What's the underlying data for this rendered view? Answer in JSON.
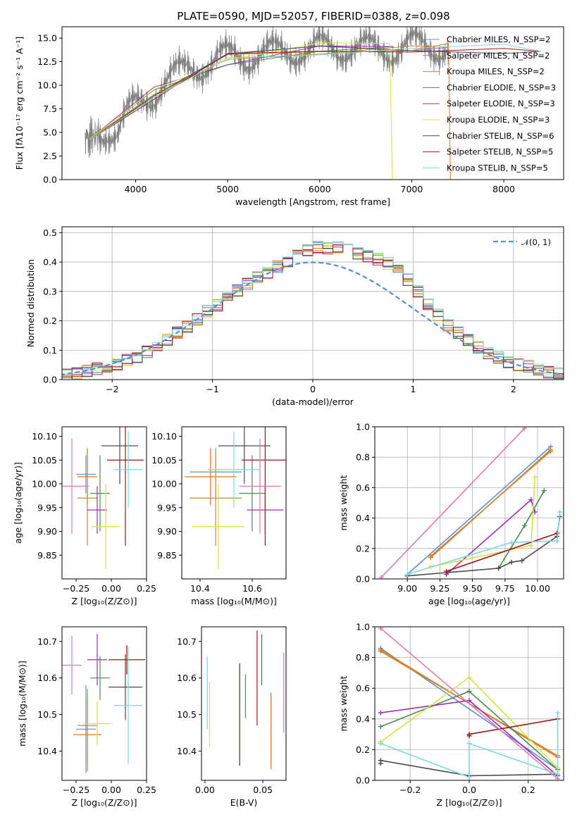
{
  "title": "PLATE=0590, MJD=52057, FIBERID=0388, z=0.098",
  "colors": [
    "#5f8fd3",
    "#e6751a",
    "#c48a3b",
    "#4f8a52",
    "#9a2fb5",
    "#d8e040",
    "#4a4a4a",
    "#a01515",
    "#7fd8dc",
    "#e07aa8"
  ],
  "chart_data": [
    {
      "type": "line",
      "xlabel": "wavelength [Angstrom, rest frame]",
      "ylabel": "Flux [fλ10⁻¹⁷ erg cm⁻² s⁻¹ A⁻¹]",
      "xlim": [
        3200,
        8650
      ],
      "ylim": [
        0,
        16.2
      ],
      "xticks": [
        "4000",
        "5000",
        "6000",
        "7000",
        "8000"
      ],
      "yticks": [
        "0.0",
        "2.5",
        "5.0",
        "7.5",
        "10.0",
        "12.5",
        "15.0"
      ],
      "observed_spectrum": {
        "color": "#808080",
        "x": [
          3450,
          3520,
          3600,
          3700,
          3800,
          3900,
          4000,
          4100,
          4200,
          4300,
          4400,
          4500,
          4600,
          4700,
          4800,
          4900,
          5000,
          5100,
          5200,
          5300,
          5400,
          5500,
          5600,
          5700,
          5800,
          5900,
          6000,
          6100,
          6200,
          6300,
          6400,
          6500,
          6600,
          6700,
          6800,
          6900,
          7000,
          7100,
          7200,
          7300,
          7400
        ],
        "y": [
          4.2,
          4.5,
          4.8,
          5.5,
          5.2,
          6.8,
          7.6,
          8.3,
          9.2,
          10.5,
          10.9,
          11.2,
          11.8,
          12.1,
          12.5,
          12.8,
          12.9,
          13.1,
          13.0,
          13.3,
          13.4,
          13.3,
          13.6,
          13.7,
          13.8,
          13.5,
          13.9,
          14.0,
          14.0,
          14.1,
          13.8,
          13.7,
          13.9,
          14.0,
          13.8,
          13.9,
          14.1,
          14.2,
          14.3,
          14.1,
          14.0
        ]
      },
      "series": [
        {
          "name": "Chabrier MILES, N_SSP=2",
          "x": [
            3500,
            4200,
            5000,
            6000,
            7000,
            7400
          ],
          "y": [
            4.3,
            9.3,
            12.8,
            13.9,
            14.2,
            14.0
          ]
        },
        {
          "name": "Salpeter MILES, N_SSP=2",
          "x": [
            3500,
            4200,
            5000,
            6000,
            7000,
            7400,
            7420
          ],
          "y": [
            4.3,
            9.3,
            12.8,
            13.9,
            14.2,
            14.0,
            0.0
          ]
        },
        {
          "name": "Kroupa MILES, N_SSP=2",
          "x": [
            3500,
            4200,
            5000,
            6000,
            7000,
            7400
          ],
          "y": [
            4.3,
            9.3,
            12.8,
            13.9,
            14.2,
            14.0
          ]
        },
        {
          "name": "Chabrier ELODIE, N_SSP=3",
          "x": [
            3500,
            4200,
            5000,
            6000,
            6800
          ],
          "y": [
            4.3,
            9.2,
            12.7,
            13.9,
            14.1
          ]
        },
        {
          "name": "Salpeter ELODIE, N_SSP=3",
          "x": [
            3500,
            4200,
            5000,
            6000,
            6800
          ],
          "y": [
            4.3,
            9.2,
            12.7,
            13.9,
            14.1
          ]
        },
        {
          "name": "Kroupa ELODIE, N_SSP=3",
          "x": [
            3500,
            4200,
            5000,
            6000,
            6760,
            6790
          ],
          "y": [
            4.3,
            9.2,
            12.7,
            13.9,
            14.1,
            0.0
          ]
        },
        {
          "name": "Chabrier STELIB, N_SSP=6",
          "x": [
            3500,
            4200,
            5000,
            6000,
            7000,
            8000,
            8400
          ],
          "y": [
            4.2,
            9.1,
            12.8,
            13.8,
            14.1,
            13.8,
            13.6
          ]
        },
        {
          "name": "Salpeter STELIB, N_SSP=5",
          "x": [
            3500,
            4200,
            5000,
            6000,
            7000,
            8000,
            8400
          ],
          "y": [
            4.2,
            9.1,
            12.8,
            13.8,
            14.1,
            13.8,
            13.6
          ]
        },
        {
          "name": "Kroupa STELIB, N_SSP=5",
          "x": [
            3500,
            4200,
            5000,
            6000,
            7000,
            8000,
            8400
          ],
          "y": [
            4.2,
            9.1,
            12.8,
            13.8,
            14.1,
            13.8,
            13.6
          ]
        }
      ],
      "legend_position": "top-right"
    },
    {
      "type": "line",
      "xlabel": "(data-model)/error",
      "ylabel": "Normed distribution",
      "xlim": [
        -2.5,
        2.5
      ],
      "ylim": [
        0,
        0.52
      ],
      "xticks": [
        "−2",
        "−1",
        "0",
        "1",
        "2"
      ],
      "yticks": [
        "0.0",
        "0.1",
        "0.2",
        "0.3",
        "0.4",
        "0.5"
      ],
      "grid": true,
      "legend": "𝒩(0, 1)",
      "legend_position": "top-right",
      "gaussian": {
        "mean": 0,
        "sigma": 1
      },
      "histogram_bin_edges": [
        -2.5,
        -2.4,
        -2.3,
        -2.2,
        -2.1,
        -2.0,
        -1.9,
        -1.8,
        -1.7,
        -1.6,
        -1.5,
        -1.4,
        -1.3,
        -1.2,
        -1.1,
        -1.0,
        -0.9,
        -0.8,
        -0.7,
        -0.6,
        -0.5,
        -0.4,
        -0.3,
        -0.2,
        -0.1,
        0.0,
        0.1,
        0.2,
        0.3,
        0.4,
        0.5,
        0.6,
        0.7,
        0.8,
        0.9,
        1.0,
        1.1,
        1.2,
        1.3,
        1.4,
        1.5,
        1.6,
        1.7,
        1.8,
        1.9,
        2.0,
        2.1,
        2.2,
        2.3,
        2.4,
        2.5
      ],
      "histogram_values": [
        0.018,
        0.022,
        0.03,
        0.037,
        0.045,
        0.052,
        0.066,
        0.078,
        0.095,
        0.118,
        0.136,
        0.16,
        0.18,
        0.205,
        0.232,
        0.252,
        0.282,
        0.303,
        0.325,
        0.348,
        0.365,
        0.385,
        0.4,
        0.42,
        0.44,
        0.45,
        0.445,
        0.448,
        0.44,
        0.43,
        0.42,
        0.41,
        0.395,
        0.37,
        0.34,
        0.3,
        0.255,
        0.22,
        0.185,
        0.16,
        0.135,
        0.11,
        0.09,
        0.075,
        0.06,
        0.05,
        0.045,
        0.035,
        0.025,
        0.02
      ]
    },
    {
      "type": "scatter",
      "xlabel": "Z [log₁₀(Z/Z⊙)]",
      "ylabel": "age  [log₁₀(age/yr)]",
      "xlim": [
        -0.35,
        0.25
      ],
      "ylim": [
        9.8,
        10.12
      ],
      "xticks": [
        "−0.25",
        "0.00",
        "0.25"
      ],
      "yticks": [
        "9.85",
        "9.90",
        "9.95",
        "10.00",
        "10.05",
        "10.10"
      ],
      "points": [
        {
          "x": -0.18,
          "y": 10.02,
          "xerr": 0.07,
          "yerr": 0.04
        },
        {
          "x": -0.17,
          "y": 10.015,
          "xerr": 0.07,
          "yerr": 0.06
        },
        {
          "x": -0.17,
          "y": 9.97,
          "xerr": 0.07,
          "yerr": 0.1
        },
        {
          "x": -0.08,
          "y": 9.98,
          "xerr": 0.07,
          "yerr": 0.08
        },
        {
          "x": -0.1,
          "y": 9.945,
          "xerr": 0.07,
          "yerr": 0.05
        },
        {
          "x": -0.04,
          "y": 9.91,
          "xerr": 0.1,
          "yerr": 0.09
        },
        {
          "x": 0.06,
          "y": 10.08,
          "xerr": 0.13,
          "yerr": 0.08
        },
        {
          "x": 0.1,
          "y": 10.05,
          "xerr": 0.13,
          "yerr": 0.18
        },
        {
          "x": 0.12,
          "y": 10.03,
          "xerr": 0.1,
          "yerr": 0.08
        },
        {
          "x": -0.28,
          "y": 9.995,
          "xerr": 0.12,
          "yerr": 0.1
        }
      ]
    },
    {
      "type": "scatter",
      "xlabel": "mass [log₁₀(M/M⊙)]",
      "xlim": [
        10.33,
        10.73
      ],
      "ylim": [
        9.8,
        10.12
      ],
      "xticks": [
        "10.4",
        "10.6"
      ],
      "yticks": [
        "9.85",
        "9.90",
        "9.95",
        "10.00",
        "10.05",
        "10.10"
      ],
      "points": [
        {
          "x": 10.46,
          "y": 10.025,
          "xerr": 0.1,
          "yerr": 0.05
        },
        {
          "x": 10.44,
          "y": 10.015,
          "xerr": 0.1,
          "yerr": 0.06
        },
        {
          "x": 10.46,
          "y": 9.97,
          "xerr": 0.1,
          "yerr": 0.1
        },
        {
          "x": 10.6,
          "y": 9.98,
          "xerr": 0.05,
          "yerr": 0.08
        },
        {
          "x": 10.65,
          "y": 9.945,
          "xerr": 0.07,
          "yerr": 0.05
        },
        {
          "x": 10.47,
          "y": 9.91,
          "xerr": 0.1,
          "yerr": 0.09
        },
        {
          "x": 10.57,
          "y": 10.08,
          "xerr": 0.1,
          "yerr": 0.08
        },
        {
          "x": 10.65,
          "y": 10.05,
          "xerr": 0.09,
          "yerr": 0.18
        },
        {
          "x": 10.53,
          "y": 10.03,
          "xerr": 0.1,
          "yerr": 0.08
        },
        {
          "x": 10.63,
          "y": 9.995,
          "xerr": 0.08,
          "yerr": 0.1
        }
      ]
    },
    {
      "type": "line",
      "xlabel": "age  [log₁₀(age/yr)]",
      "ylabel": "mass weight",
      "xlim": [
        8.75,
        10.2
      ],
      "ylim": [
        0,
        1
      ],
      "xticks": [
        "9.00",
        "9.25",
        "9.50",
        "9.75",
        "10.00"
      ],
      "yticks": [
        "0.0",
        "0.2",
        "0.4",
        "0.6",
        "0.8",
        "1.0"
      ],
      "grid": true,
      "series": [
        {
          "x": [
            9.0,
            10.1
          ],
          "y": [
            0.03,
            0.87
          ]
        },
        {
          "x": [
            9.18,
            10.1
          ],
          "y": [
            0.15,
            0.84
          ]
        },
        {
          "x": [
            9.18,
            10.1
          ],
          "y": [
            0.14,
            0.85
          ]
        },
        {
          "x": [
            9.7,
            9.9,
            10.05
          ],
          "y": [
            0.07,
            0.35,
            0.58
          ]
        },
        {
          "x": [
            9.3,
            9.95,
            9.98
          ],
          "y": [
            0.03,
            0.52,
            0.44
          ]
        },
        {
          "x": [
            9.18,
            9.95,
            9.98
          ],
          "y": [
            0.08,
            0.22,
            0.67
          ]
        },
        {
          "x": [
            9.0,
            9.7,
            9.8,
            9.88,
            10.15,
            10.17
          ],
          "y": [
            0.02,
            0.07,
            0.11,
            0.12,
            0.28,
            0.41
          ]
        },
        {
          "x": [
            9.3,
            10.15
          ],
          "y": [
            0.05,
            0.3
          ]
        },
        {
          "x": [
            9.0,
            9.8,
            10.15,
            10.17
          ],
          "y": [
            0.03,
            0.24,
            0.25,
            0.44
          ]
        },
        {
          "x": [
            8.8,
            9.9
          ],
          "y": [
            0.01,
            0.99
          ]
        }
      ]
    },
    {
      "type": "scatter",
      "xlabel": "Z [log₁₀(Z/Z⊙)]",
      "ylabel": "mass [log₁₀(M/M⊙)]",
      "xlim": [
        -0.35,
        0.25
      ],
      "ylim": [
        10.32,
        10.74
      ],
      "xticks": [
        "−0.25",
        "0.00",
        "0.25"
      ],
      "yticks": [
        "10.4",
        "10.5",
        "10.6",
        "10.7"
      ],
      "points": [
        {
          "x": -0.18,
          "y": 10.46,
          "xerr": 0.07,
          "yerr": 0.12
        },
        {
          "x": -0.17,
          "y": 10.445,
          "xerr": 0.1,
          "yerr": 0.1
        },
        {
          "x": -0.17,
          "y": 10.47,
          "xerr": 0.07,
          "yerr": 0.1
        },
        {
          "x": -0.08,
          "y": 10.6,
          "xerr": 0.07,
          "yerr": 0.06
        },
        {
          "x": -0.1,
          "y": 10.65,
          "xerr": 0.07,
          "yerr": 0.07
        },
        {
          "x": -0.1,
          "y": 10.475,
          "xerr": 0.1,
          "yerr": 0.06
        },
        {
          "x": 0.1,
          "y": 10.575,
          "xerr": 0.12,
          "yerr": 0.09
        },
        {
          "x": 0.11,
          "y": 10.65,
          "xerr": 0.13,
          "yerr": 0.04
        },
        {
          "x": 0.12,
          "y": 10.525,
          "xerr": 0.1,
          "yerr": 0.16
        },
        {
          "x": -0.28,
          "y": 10.635,
          "xerr": 0.07,
          "yerr": 0.08
        }
      ]
    },
    {
      "type": "scatter",
      "xlabel": "E(B-V)",
      "xlim": [
        -0.003,
        0.07
      ],
      "ylim": [
        10.32,
        10.74
      ],
      "xticks": [
        "0.00",
        "0.05"
      ],
      "yticks": [
        "10.4",
        "10.5",
        "10.6",
        "10.7"
      ],
      "points": [
        {
          "x": 0.057,
          "y": 10.46,
          "yerr": 0.1
        },
        {
          "x": 0.057,
          "y": 10.45,
          "yerr": 0.1
        },
        {
          "x": 0.03,
          "y": 10.5,
          "yerr": 0.14
        },
        {
          "x": 0.035,
          "y": 10.55,
          "yerr": 0.06
        },
        {
          "x": 0.049,
          "y": 10.65,
          "yerr": 0.07
        },
        {
          "x": 0.004,
          "y": 10.5,
          "yerr": 0.09
        },
        {
          "x": 0.03,
          "y": 10.5,
          "yerr": 0.14
        },
        {
          "x": 0.045,
          "y": 10.6,
          "yerr": 0.13
        },
        {
          "x": 0.002,
          "y": 10.56,
          "yerr": 0.1
        },
        {
          "x": 0.068,
          "y": 10.56,
          "yerr": 0.11
        }
      ]
    },
    {
      "type": "line",
      "xlabel": "Z [log₁₀(Z/Z⊙)]",
      "ylabel": "mass weight",
      "xlim": [
        -0.32,
        0.32
      ],
      "ylim": [
        0,
        1
      ],
      "xticks": [
        "−0.2",
        "0.0",
        "0.2"
      ],
      "yticks": [
        "0.0",
        "0.2",
        "0.4",
        "0.6",
        "0.8",
        "1.0"
      ],
      "grid": true,
      "series": [
        {
          "x": [
            -0.3,
            0.3
          ],
          "y": [
            0.86,
            0.07
          ]
        },
        {
          "x": [
            -0.3,
            0.3
          ],
          "y": [
            0.85,
            0.15
          ]
        },
        {
          "x": [
            -0.3,
            0.3
          ],
          "y": [
            0.84,
            0.16
          ]
        },
        {
          "x": [
            -0.3,
            0.0,
            0.3
          ],
          "y": [
            0.35,
            0.58,
            0.07
          ]
        },
        {
          "x": [
            -0.3,
            0.0,
            0.3
          ],
          "y": [
            0.44,
            0.52,
            0.03
          ]
        },
        {
          "x": [
            -0.3,
            0.0,
            0.3
          ],
          "y": [
            0.25,
            0.67,
            0.08
          ]
        },
        {
          "x": [
            -0.3,
            -0.3,
            0.0,
            0.3
          ],
          "y": [
            0.11,
            0.13,
            0.03,
            0.04
          ]
        },
        {
          "x": [
            0.0,
            0.0,
            0.3
          ],
          "y": [
            0.29,
            0.3,
            0.4
          ]
        },
        {
          "x": [
            -0.3,
            0.0,
            0.0,
            0.3,
            0.3
          ],
          "y": [
            0.24,
            0.02,
            0.24,
            0.04,
            0.44
          ]
        },
        {
          "x": [
            -0.3,
            0.3
          ],
          "y": [
            0.99,
            0.01
          ]
        }
      ]
    }
  ]
}
